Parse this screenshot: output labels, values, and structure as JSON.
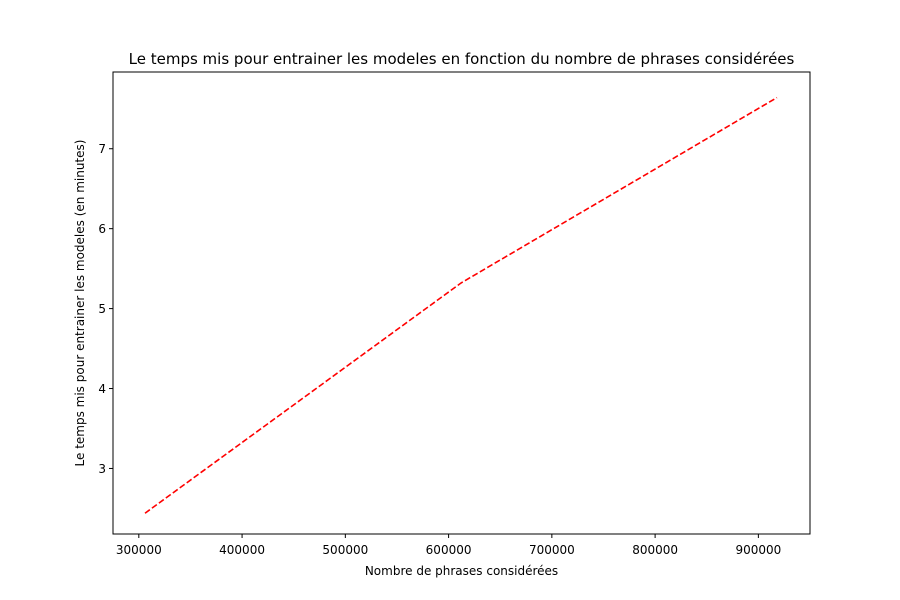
{
  "chart_data": {
    "type": "line",
    "title": "Le temps mis pour entrainer les modeles en fonction du nombre de phrases considérées",
    "xlabel": "Nombre de phrases considérées",
    "ylabel": "Le temps mis pour entrainer les modeles (en minutes)",
    "x_ticks": [
      300000,
      400000,
      500000,
      600000,
      700000,
      800000,
      900000
    ],
    "y_ticks": [
      3,
      4,
      5,
      6,
      7
    ],
    "xlim": [
      275000,
      950000
    ],
    "ylim": [
      2.18,
      7.96
    ],
    "grid": false,
    "legend": "none",
    "series": [
      {
        "x": [
          306000,
          612000,
          918000
        ],
        "y": [
          2.44,
          5.32,
          7.64
        ],
        "color": "#ff0000",
        "linestyle": "dashed"
      }
    ]
  }
}
